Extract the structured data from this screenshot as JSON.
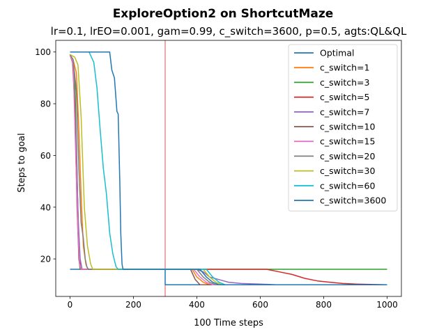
{
  "chart_data": {
    "type": "line",
    "title": "ExploreOption2 on ShortcutMaze",
    "subtitle": "lr=0.1, lrEO=0.001, gam=0.99, c_switch=3600, p=0.5, agts:QL&QL",
    "xlabel": "100 Time steps",
    "ylabel": "Steps to goal",
    "xlim": [
      -45,
      1045
    ],
    "ylim": [
      5.5,
      104.5
    ],
    "xticks": [
      0,
      200,
      400,
      600,
      800,
      1000
    ],
    "yticks": [
      20,
      40,
      60,
      80,
      100
    ],
    "grid": false,
    "legend_position": "top-right",
    "vline": {
      "x": 300,
      "color": "#d62728"
    },
    "series": [
      {
        "name": "Optimal",
        "color": "#1f77b4",
        "values": [
          [
            0,
            16
          ],
          [
            300,
            16
          ],
          [
            300,
            10
          ],
          [
            1000,
            10
          ]
        ]
      },
      {
        "name": "c_switch=1",
        "color": "#ff7f0e",
        "values": [
          [
            0,
            99
          ],
          [
            10,
            97
          ],
          [
            20,
            92
          ],
          [
            28,
            70
          ],
          [
            35,
            45
          ],
          [
            42,
            25
          ],
          [
            50,
            18
          ],
          [
            56,
            16
          ],
          [
            300,
            16
          ],
          [
            385,
            16
          ],
          [
            400,
            13
          ],
          [
            420,
            11
          ],
          [
            440,
            10
          ],
          [
            1000,
            10
          ]
        ]
      },
      {
        "name": "c_switch=3",
        "color": "#2ca02c",
        "values": [
          [
            0,
            99
          ],
          [
            8,
            96
          ],
          [
            15,
            90
          ],
          [
            22,
            55
          ],
          [
            28,
            20
          ],
          [
            32,
            16
          ],
          [
            1000,
            16
          ]
        ]
      },
      {
        "name": "c_switch=5",
        "color": "#d62728",
        "values": [
          [
            0,
            99
          ],
          [
            10,
            95
          ],
          [
            20,
            60
          ],
          [
            28,
            25
          ],
          [
            33,
            16
          ],
          [
            300,
            16
          ],
          [
            620,
            16
          ],
          [
            660,
            15
          ],
          [
            700,
            14
          ],
          [
            740,
            12.5
          ],
          [
            780,
            11.5
          ],
          [
            820,
            11
          ],
          [
            860,
            10.5
          ],
          [
            900,
            10.3
          ],
          [
            1000,
            10
          ]
        ]
      },
      {
        "name": "c_switch=7",
        "color": "#9467bd",
        "values": [
          [
            0,
            99
          ],
          [
            10,
            95
          ],
          [
            18,
            70
          ],
          [
            26,
            35
          ],
          [
            32,
            20
          ],
          [
            38,
            16
          ],
          [
            300,
            16
          ],
          [
            400,
            16
          ],
          [
            420,
            15
          ],
          [
            440,
            13
          ],
          [
            470,
            12
          ],
          [
            500,
            11
          ],
          [
            540,
            10.5
          ],
          [
            600,
            10.3
          ],
          [
            650,
            10
          ],
          [
            1000,
            10
          ]
        ]
      },
      {
        "name": "c_switch=10",
        "color": "#8c564b",
        "values": [
          [
            0,
            99
          ],
          [
            8,
            96
          ],
          [
            15,
            80
          ],
          [
            22,
            40
          ],
          [
            28,
            20
          ],
          [
            33,
            16
          ],
          [
            300,
            16
          ],
          [
            380,
            16
          ],
          [
            395,
            12
          ],
          [
            410,
            10
          ],
          [
            1000,
            10
          ]
        ]
      },
      {
        "name": "c_switch=15",
        "color": "#e377c2",
        "values": [
          [
            0,
            99
          ],
          [
            10,
            95
          ],
          [
            18,
            60
          ],
          [
            25,
            30
          ],
          [
            30,
            18
          ],
          [
            35,
            16
          ],
          [
            300,
            16
          ],
          [
            390,
            16
          ],
          [
            410,
            13
          ],
          [
            430,
            11
          ],
          [
            450,
            10
          ],
          [
            1000,
            10
          ]
        ]
      },
      {
        "name": "c_switch=20",
        "color": "#7f7f7f",
        "values": [
          [
            0,
            99
          ],
          [
            10,
            97
          ],
          [
            20,
            85
          ],
          [
            28,
            55
          ],
          [
            35,
            34
          ],
          [
            42,
            28
          ],
          [
            48,
            20
          ],
          [
            53,
            17
          ],
          [
            58,
            16
          ],
          [
            300,
            16
          ],
          [
            400,
            16
          ],
          [
            420,
            13
          ],
          [
            440,
            11
          ],
          [
            460,
            10
          ],
          [
            1000,
            10
          ]
        ]
      },
      {
        "name": "c_switch=30",
        "color": "#bcbd22",
        "values": [
          [
            0,
            99
          ],
          [
            15,
            98
          ],
          [
            25,
            95
          ],
          [
            35,
            75
          ],
          [
            45,
            40
          ],
          [
            55,
            25
          ],
          [
            65,
            18
          ],
          [
            72,
            16
          ],
          [
            300,
            16
          ],
          [
            420,
            16
          ],
          [
            440,
            13
          ],
          [
            460,
            11
          ],
          [
            480,
            10
          ],
          [
            1000,
            10
          ]
        ]
      },
      {
        "name": "c_switch=60",
        "color": "#17becf",
        "values": [
          [
            0,
            100
          ],
          [
            40,
            100
          ],
          [
            60,
            100
          ],
          [
            75,
            96
          ],
          [
            85,
            86
          ],
          [
            95,
            70
          ],
          [
            105,
            55
          ],
          [
            115,
            45
          ],
          [
            125,
            30
          ],
          [
            135,
            22
          ],
          [
            145,
            17
          ],
          [
            152,
            16
          ],
          [
            300,
            16
          ],
          [
            430,
            16
          ],
          [
            450,
            13
          ],
          [
            470,
            11
          ],
          [
            490,
            10
          ],
          [
            1000,
            10
          ]
        ]
      },
      {
        "name": "c_switch=3600",
        "color": "#1f77b4",
        "values": [
          [
            0,
            100
          ],
          [
            110,
            100
          ],
          [
            125,
            100
          ],
          [
            132,
            93
          ],
          [
            140,
            90
          ],
          [
            148,
            77
          ],
          [
            152,
            76
          ],
          [
            157,
            50
          ],
          [
            160,
            30
          ],
          [
            164,
            18
          ],
          [
            167,
            16
          ],
          [
            300,
            16
          ],
          [
            300,
            16
          ],
          [
            410,
            16
          ],
          [
            430,
            13
          ],
          [
            450,
            11
          ],
          [
            470,
            10
          ],
          [
            1000,
            10
          ]
        ]
      }
    ]
  }
}
